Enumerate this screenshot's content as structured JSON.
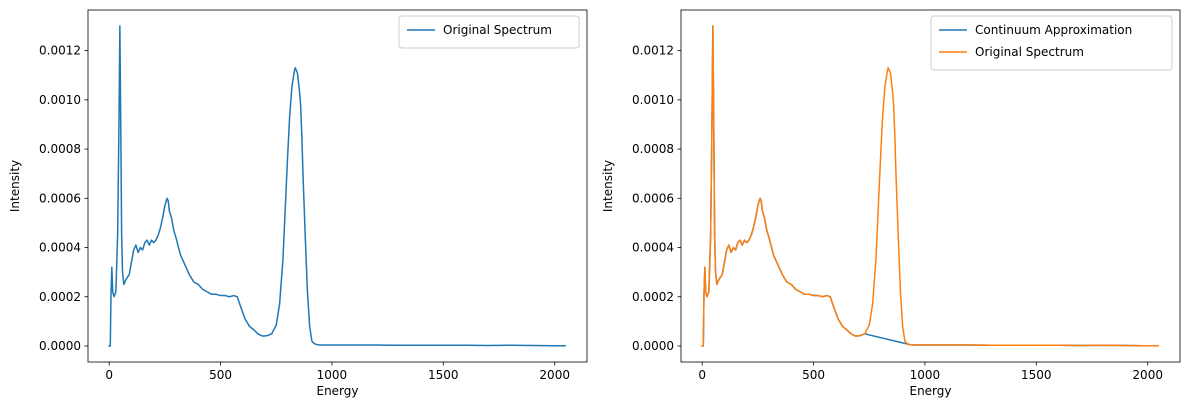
{
  "colors": {
    "blue": "#1f77b4",
    "orange": "#ff7f0e",
    "legend_border": "#cccccc",
    "axis": "#000000"
  },
  "chart_data": [
    {
      "type": "line",
      "xlabel": "Energy",
      "ylabel": "Intensity",
      "xlim": [
        -95,
        2145
      ],
      "ylim": [
        -6.5e-05,
        0.001365
      ],
      "xticks": [
        0,
        500,
        1000,
        1500,
        2000
      ],
      "yticks": [
        0.0,
        0.0002,
        0.0004,
        0.0006,
        0.0008,
        0.001,
        0.0012
      ],
      "xtick_labels": [
        "0",
        "500",
        "1000",
        "1500",
        "2000"
      ],
      "ytick_labels": [
        "0.0000",
        "0.0002",
        "0.0004",
        "0.0006",
        "0.0008",
        "0.0010",
        "0.0012"
      ],
      "legend": {
        "location": "upper right"
      },
      "series": [
        {
          "name": "Original Spectrum",
          "color": "blue",
          "x": [
            0,
            5,
            8,
            12,
            16,
            22,
            30,
            38,
            44,
            48,
            52,
            56,
            60,
            66,
            75,
            90,
            100,
            110,
            120,
            130,
            140,
            150,
            160,
            170,
            180,
            190,
            200,
            210,
            220,
            230,
            240,
            250,
            260,
            265,
            270,
            280,
            290,
            300,
            320,
            340,
            360,
            380,
            400,
            420,
            440,
            460,
            480,
            500,
            520,
            540,
            560,
            575,
            590,
            610,
            630,
            650,
            670,
            690,
            710,
            730,
            750,
            765,
            780,
            790,
            800,
            810,
            820,
            830,
            835,
            840,
            845,
            850,
            855,
            860,
            865,
            870,
            880,
            890,
            900,
            910,
            920,
            935,
            950,
            1000,
            1100,
            1200,
            1300,
            1400,
            1500,
            1600,
            1700,
            1800,
            1900,
            2000,
            2047
          ],
          "y": [
            0.0,
            0.0,
            0.0002,
            0.00032,
            0.00022,
            0.0002,
            0.00022,
            0.00045,
            0.0009,
            0.0013,
            0.0009,
            0.00045,
            0.0003,
            0.00025,
            0.00027,
            0.00029,
            0.00034,
            0.00039,
            0.00041,
            0.00038,
            0.0004,
            0.00039,
            0.00042,
            0.00043,
            0.00041,
            0.00043,
            0.00042,
            0.00043,
            0.00045,
            0.00048,
            0.00052,
            0.00057,
            0.0006,
            0.00059,
            0.00055,
            0.00052,
            0.00047,
            0.00044,
            0.00037,
            0.00033,
            0.00029,
            0.00026,
            0.00025,
            0.00023,
            0.00022,
            0.00021,
            0.00021,
            0.000205,
            0.000205,
            0.0002,
            0.000205,
            0.0002,
            0.00016,
            0.00011,
            8e-05,
            6.5e-05,
            4.8e-05,
            4e-05,
            4.2e-05,
            5e-05,
            8.5e-05,
            0.00017,
            0.00035,
            0.00055,
            0.00075,
            0.00093,
            0.00105,
            0.00111,
            0.00113,
            0.00112,
            0.00111,
            0.00107,
            0.00103,
            0.00097,
            0.00085,
            0.0007,
            0.00045,
            0.00022,
            8e-05,
            2e-05,
            1e-05,
            5e-06,
            4e-06,
            4e-06,
            4e-06,
            4e-06,
            3e-06,
            3e-06,
            3e-06,
            3e-06,
            2e-06,
            3e-06,
            2e-06,
            1e-06,
            1e-06
          ]
        }
      ]
    },
    {
      "type": "line",
      "xlabel": "Energy",
      "ylabel": "Intensity",
      "xlim": [
        -95,
        2145
      ],
      "ylim": [
        -6.5e-05,
        0.001365
      ],
      "xticks": [
        0,
        500,
        1000,
        1500,
        2000
      ],
      "yticks": [
        0.0,
        0.0002,
        0.0004,
        0.0006,
        0.0008,
        0.001,
        0.0012
      ],
      "xtick_labels": [
        "0",
        "500",
        "1000",
        "1500",
        "2000"
      ],
      "ytick_labels": [
        "0.0000",
        "0.0002",
        "0.0004",
        "0.0006",
        "0.0008",
        "0.0010",
        "0.0012"
      ],
      "legend": {
        "location": "upper right"
      },
      "series": [
        {
          "name": "Continuum Approximation",
          "color": "blue",
          "x": [
            0,
            5,
            8,
            12,
            16,
            22,
            30,
            38,
            44,
            48,
            52,
            56,
            60,
            66,
            75,
            90,
            100,
            110,
            120,
            130,
            140,
            150,
            160,
            170,
            180,
            190,
            200,
            210,
            220,
            230,
            240,
            250,
            260,
            265,
            270,
            280,
            290,
            300,
            320,
            340,
            360,
            380,
            400,
            420,
            440,
            460,
            480,
            500,
            520,
            540,
            560,
            575,
            590,
            610,
            630,
            650,
            670,
            690,
            710,
            730,
            750,
            935,
            950,
            1000,
            1100,
            1200,
            1300,
            1400,
            1500,
            1600,
            1700,
            1800,
            1900,
            2000,
            2047
          ],
          "y": [
            0.0,
            0.0,
            0.0002,
            0.00032,
            0.00022,
            0.0002,
            0.00022,
            0.00045,
            0.0009,
            0.0013,
            0.0009,
            0.00045,
            0.0003,
            0.00025,
            0.00027,
            0.00029,
            0.00034,
            0.00039,
            0.00041,
            0.00038,
            0.0004,
            0.00039,
            0.00042,
            0.00043,
            0.00041,
            0.00043,
            0.00042,
            0.00043,
            0.00045,
            0.00048,
            0.00052,
            0.00057,
            0.0006,
            0.00059,
            0.00055,
            0.00052,
            0.00047,
            0.00044,
            0.00037,
            0.00033,
            0.00029,
            0.00026,
            0.00025,
            0.00023,
            0.00022,
            0.00021,
            0.00021,
            0.000205,
            0.000205,
            0.0002,
            0.000205,
            0.0002,
            0.00016,
            0.00011,
            8e-05,
            6.5e-05,
            4.8e-05,
            4e-05,
            4.2e-05,
            5e-05,
            4.5e-05,
            5e-06,
            4e-06,
            4e-06,
            4e-06,
            4e-06,
            3e-06,
            3e-06,
            3e-06,
            3e-06,
            2e-06,
            3e-06,
            2e-06,
            1e-06,
            1e-06
          ]
        },
        {
          "name": "Original Spectrum",
          "color": "orange",
          "x": [
            0,
            5,
            8,
            12,
            16,
            22,
            30,
            38,
            44,
            48,
            52,
            56,
            60,
            66,
            75,
            90,
            100,
            110,
            120,
            130,
            140,
            150,
            160,
            170,
            180,
            190,
            200,
            210,
            220,
            230,
            240,
            250,
            260,
            265,
            270,
            280,
            290,
            300,
            320,
            340,
            360,
            380,
            400,
            420,
            440,
            460,
            480,
            500,
            520,
            540,
            560,
            575,
            590,
            610,
            630,
            650,
            670,
            690,
            710,
            730,
            750,
            765,
            780,
            790,
            800,
            810,
            820,
            830,
            835,
            840,
            845,
            850,
            855,
            860,
            865,
            870,
            880,
            890,
            900,
            910,
            920,
            935,
            950,
            1000,
            1100,
            1200,
            1300,
            1400,
            1500,
            1600,
            1700,
            1800,
            1900,
            2000,
            2047
          ],
          "y": [
            0.0,
            0.0,
            0.0002,
            0.00032,
            0.00022,
            0.0002,
            0.00022,
            0.00045,
            0.0009,
            0.0013,
            0.0009,
            0.00045,
            0.0003,
            0.00025,
            0.00027,
            0.00029,
            0.00034,
            0.00039,
            0.00041,
            0.00038,
            0.0004,
            0.00039,
            0.00042,
            0.00043,
            0.00041,
            0.00043,
            0.00042,
            0.00043,
            0.00045,
            0.00048,
            0.00052,
            0.00057,
            0.0006,
            0.00059,
            0.00055,
            0.00052,
            0.00047,
            0.00044,
            0.00037,
            0.00033,
            0.00029,
            0.00026,
            0.00025,
            0.00023,
            0.00022,
            0.00021,
            0.00021,
            0.000205,
            0.000205,
            0.0002,
            0.000205,
            0.0002,
            0.00016,
            0.00011,
            8e-05,
            6.5e-05,
            4.8e-05,
            4e-05,
            4.2e-05,
            5e-05,
            8.5e-05,
            0.00017,
            0.00035,
            0.00055,
            0.00075,
            0.00093,
            0.00105,
            0.00111,
            0.00113,
            0.00112,
            0.00111,
            0.00107,
            0.00103,
            0.00097,
            0.00085,
            0.0007,
            0.00045,
            0.00022,
            8e-05,
            2e-05,
            1e-05,
            5e-06,
            4e-06,
            4e-06,
            4e-06,
            4e-06,
            3e-06,
            3e-06,
            3e-06,
            3e-06,
            2e-06,
            3e-06,
            2e-06,
            1e-06,
            1e-06
          ]
        }
      ]
    }
  ]
}
